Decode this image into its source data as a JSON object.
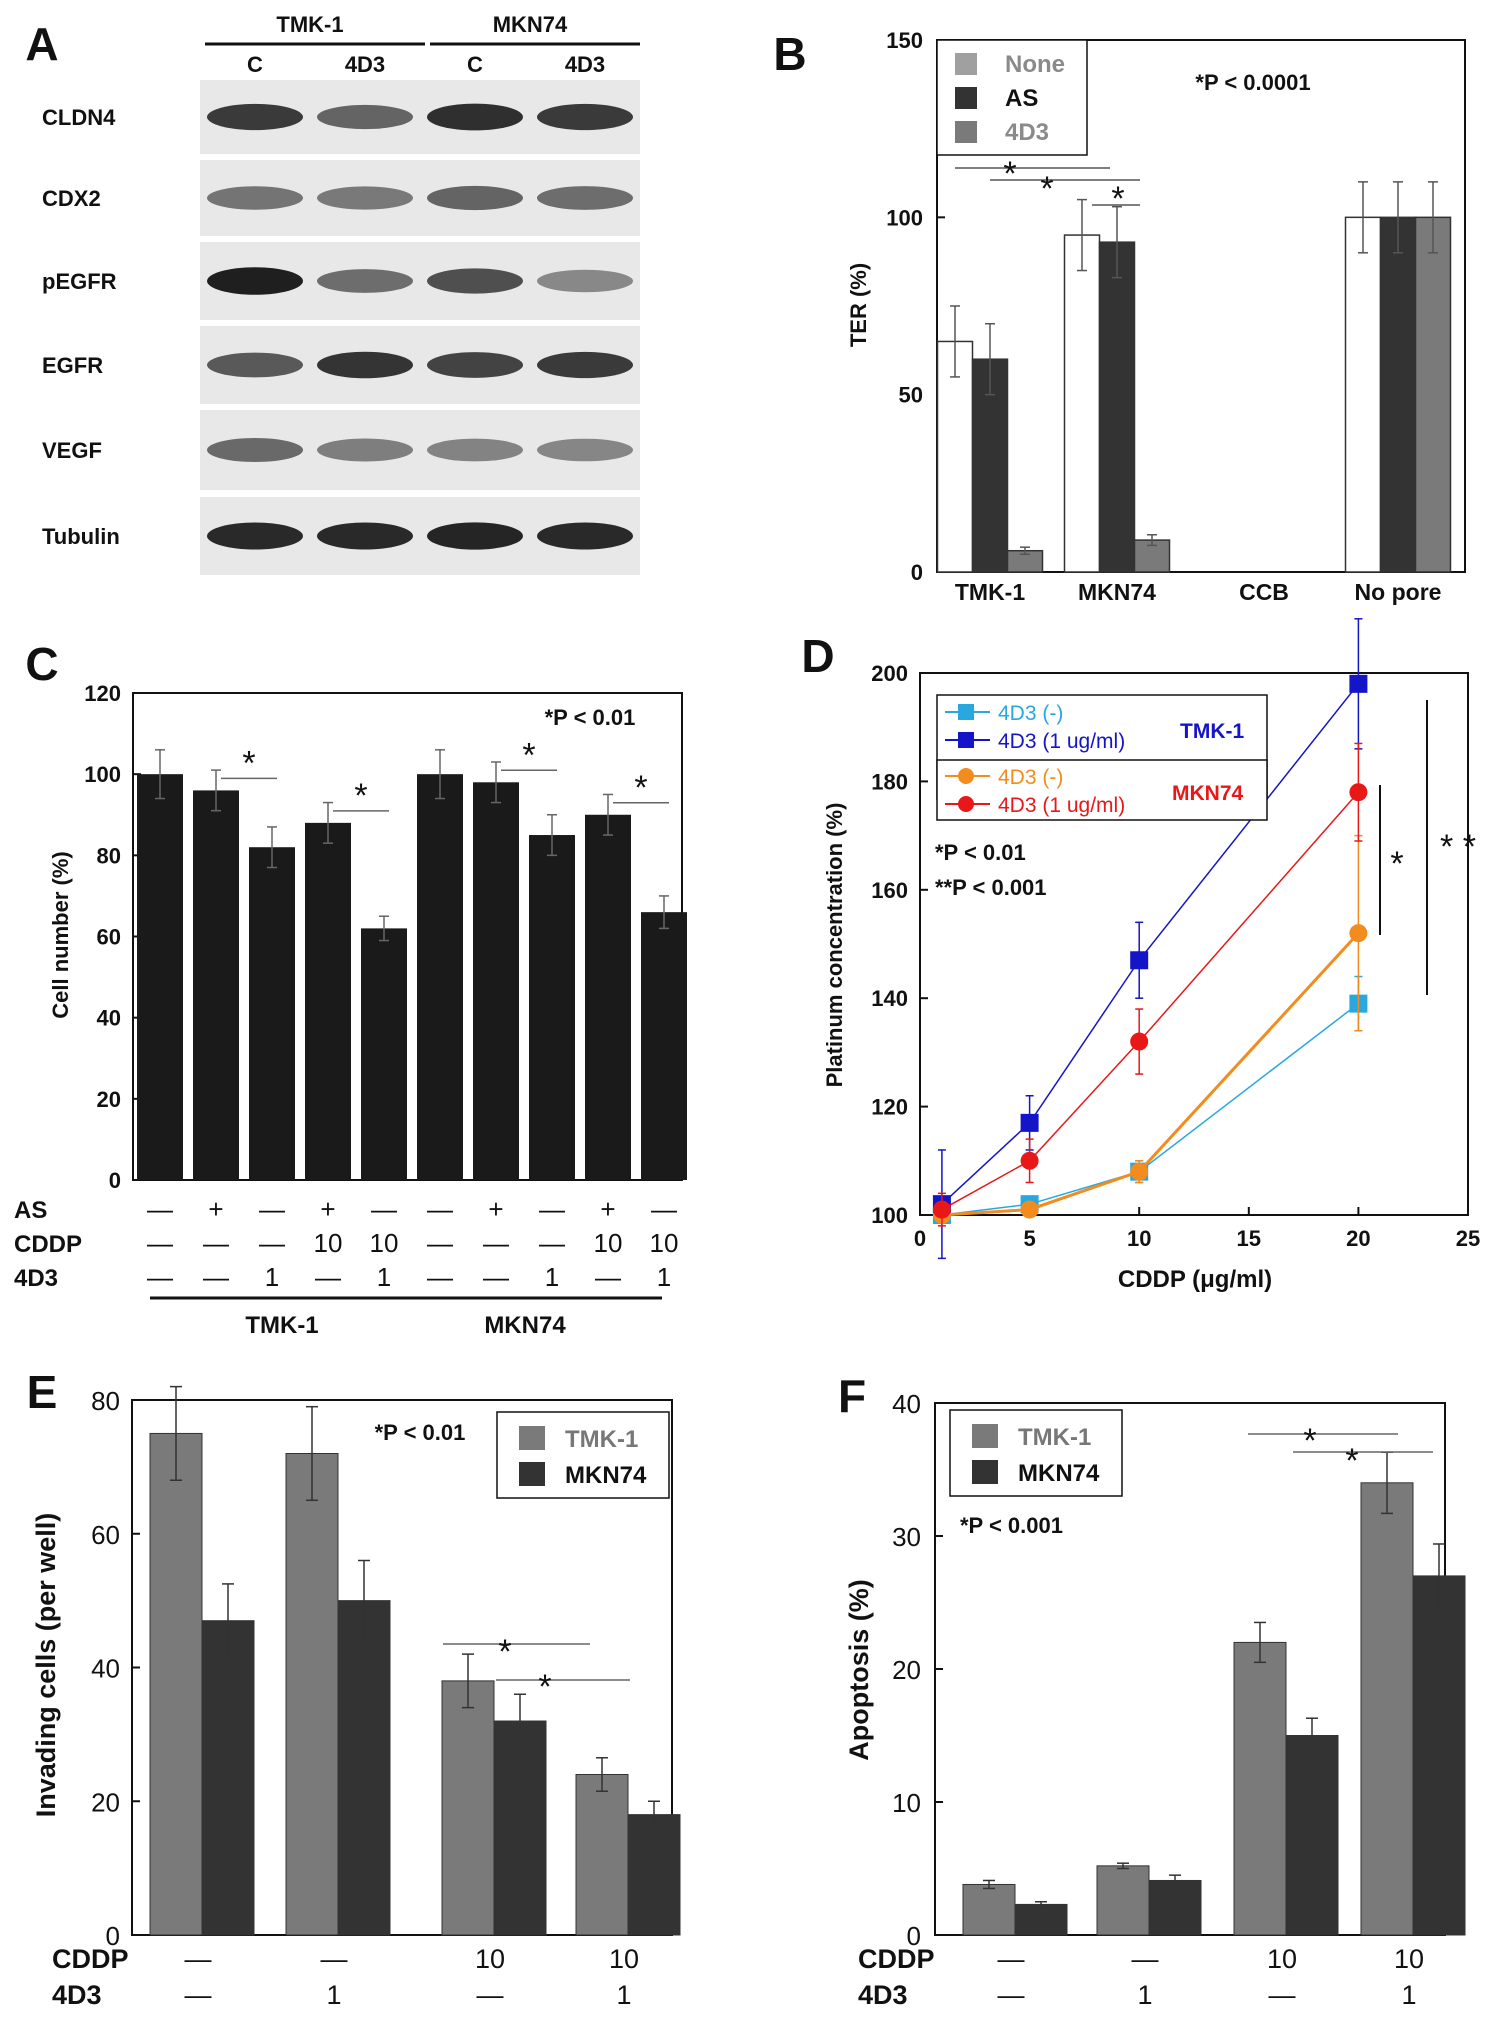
{
  "panels": {
    "A": {
      "letter": "A",
      "cell_lines": [
        "TMK-1",
        "MKN74"
      ],
      "lane_labels": [
        "C",
        "4D3",
        "C",
        "4D3"
      ],
      "rows": [
        "CLDN4",
        "CDX2",
        "pEGFR",
        "EGFR",
        "VEGF",
        "Tubulin"
      ],
      "band_intensity": [
        [
          0.82,
          0.62,
          0.88,
          0.82
        ],
        [
          0.55,
          0.52,
          0.62,
          0.58
        ],
        [
          0.95,
          0.58,
          0.72,
          0.45
        ],
        [
          0.68,
          0.85,
          0.78,
          0.82
        ],
        [
          0.6,
          0.5,
          0.48,
          0.46
        ],
        [
          0.9,
          0.9,
          0.92,
          0.9
        ]
      ]
    },
    "B": {
      "letter": "B",
      "p_note": "*P < 0.0001",
      "sig_marks": [
        "*",
        "*",
        "*"
      ]
    },
    "C": {
      "letter": "C",
      "p_note": "*P < 0.01",
      "row_labels": [
        "AS",
        "CDDP",
        "4D3"
      ],
      "conditions": [
        [
          "—",
          "—",
          "—"
        ],
        [
          "+",
          "—",
          "—"
        ],
        [
          "—",
          "—",
          "1"
        ],
        [
          "+",
          "10",
          "—"
        ],
        [
          "—",
          "10",
          "1"
        ],
        [
          "—",
          "—",
          "—"
        ],
        [
          "+",
          "—",
          "—"
        ],
        [
          "—",
          "—",
          "1"
        ],
        [
          "+",
          "10",
          "—"
        ],
        [
          "—",
          "10",
          "1"
        ]
      ],
      "group_labels": [
        "TMK-1",
        "MKN74"
      ],
      "sig_marks": [
        "*",
        "*",
        "*",
        "*"
      ]
    },
    "D": {
      "letter": "D",
      "p_notes": [
        "*P < 0.01",
        "**P <  0.001"
      ],
      "group_labels": [
        "TMK-1",
        "MKN74"
      ],
      "sig_marks": [
        "*",
        "* *"
      ]
    },
    "E": {
      "letter": "E",
      "p_note": "*P < 0.01",
      "row_labels": [
        "CDDP",
        "4D3"
      ],
      "conditions": [
        [
          "—",
          "—"
        ],
        [
          "—",
          "1"
        ],
        [
          "10",
          "—"
        ],
        [
          "10",
          "1"
        ]
      ],
      "sig_marks": [
        "*",
        "*"
      ]
    },
    "F": {
      "letter": "F",
      "p_note": "*P < 0.001",
      "row_labels": [
        "CDDP",
        "4D3"
      ],
      "conditions": [
        [
          "—",
          "—"
        ],
        [
          "—",
          "1"
        ],
        [
          "10",
          "—"
        ],
        [
          "10",
          "1"
        ]
      ],
      "sig_marks": [
        "*",
        "*"
      ]
    }
  },
  "colors": {
    "black_bar": "#1a1a1a",
    "dark_bar": "#333333",
    "mid_gray": "#7a7a7a",
    "light_gray": "#a0a0a0",
    "cyan": "#29a8e0",
    "blue": "#1414c8",
    "orange": "#f28c1e",
    "red": "#e81818",
    "blot_bg": "#e8e8e8"
  },
  "chart_data": [
    {
      "panel": "B",
      "type": "bar",
      "title": "",
      "xlabel": "",
      "ylabel": "TER (%)",
      "ylim": [
        0,
        150
      ],
      "yticks": [
        0,
        50,
        100,
        150
      ],
      "categories": [
        "TMK-1",
        "MKN74",
        "CCB",
        "No pore"
      ],
      "legend_placement": "top-left",
      "series": [
        {
          "name": "None",
          "values": [
            65,
            95,
            0,
            100
          ],
          "errors": [
            10,
            10,
            0,
            10
          ]
        },
        {
          "name": "AS",
          "values": [
            60,
            93,
            0,
            100
          ],
          "errors": [
            10,
            10,
            0,
            10
          ]
        },
        {
          "name": "4D3",
          "values": [
            6,
            9,
            0,
            100
          ],
          "errors": [
            1,
            1.5,
            0,
            10
          ]
        }
      ]
    },
    {
      "panel": "C",
      "type": "bar",
      "title": "",
      "xlabel": "",
      "ylabel": "Cell number (%)",
      "ylim": [
        0,
        120
      ],
      "yticks": [
        0,
        20,
        40,
        60,
        80,
        100,
        120
      ],
      "categories": [
        "1",
        "2",
        "3",
        "4",
        "5",
        "6",
        "7",
        "8",
        "9",
        "10"
      ],
      "values": [
        100,
        96,
        82,
        88,
        62,
        100,
        98,
        85,
        90,
        66
      ],
      "errors": [
        6,
        5,
        5,
        5,
        3,
        6,
        5,
        5,
        5,
        4
      ]
    },
    {
      "panel": "D",
      "type": "line",
      "title": "",
      "xlabel": "CDDP (μg/ml)",
      "ylabel": "Platinum concentration (%)",
      "xlim": [
        0,
        25
      ],
      "ylim": [
        100,
        200
      ],
      "xticks": [
        0,
        5,
        10,
        15,
        20,
        25
      ],
      "yticks": [
        100,
        120,
        140,
        160,
        180,
        200
      ],
      "legend_placement": "top-left",
      "series": [
        {
          "name": "4D3 (-)",
          "marker": "square",
          "group": "TMK-1",
          "x": [
            1,
            5,
            10,
            20
          ],
          "y": [
            100,
            102,
            108,
            139
          ],
          "errors": [
            0,
            1,
            2,
            5
          ]
        },
        {
          "name": "4D3 (1 ug/ml)",
          "marker": "square",
          "group": "TMK-1",
          "x": [
            1,
            5,
            10,
            20
          ],
          "y": [
            102,
            117,
            147,
            198
          ],
          "errors": [
            10,
            5,
            7,
            12
          ]
        },
        {
          "name": "4D3 (-)",
          "marker": "circle",
          "group": "MKN74",
          "x": [
            1,
            5,
            10,
            20
          ],
          "y": [
            100,
            101,
            108,
            152
          ],
          "errors": [
            0,
            1,
            2,
            18
          ]
        },
        {
          "name": "4D3 (1 ug/ml)",
          "marker": "circle",
          "group": "MKN74",
          "x": [
            1,
            5,
            10,
            20
          ],
          "y": [
            101,
            110,
            132,
            178
          ],
          "errors": [
            3,
            4,
            6,
            9
          ]
        }
      ]
    },
    {
      "panel": "E",
      "type": "bar",
      "title": "",
      "xlabel": "",
      "ylabel": "Invading cells (per well)",
      "ylim": [
        0,
        80
      ],
      "yticks": [
        0,
        20,
        40,
        60,
        80
      ],
      "categories": [
        "1",
        "2",
        "3",
        "4"
      ],
      "legend_placement": "top-right",
      "series": [
        {
          "name": "TMK-1",
          "values": [
            75,
            72,
            38,
            24
          ],
          "errors": [
            7,
            7,
            4,
            2.5
          ]
        },
        {
          "name": "MKN74",
          "values": [
            47,
            50,
            32,
            18
          ],
          "errors": [
            5.5,
            6,
            4,
            2
          ]
        }
      ]
    },
    {
      "panel": "F",
      "type": "bar",
      "title": "",
      "xlabel": "",
      "ylabel": "Apoptosis (%)",
      "ylim": [
        0,
        40
      ],
      "yticks": [
        0,
        10,
        20,
        30,
        40
      ],
      "categories": [
        "1",
        "2",
        "3",
        "4"
      ],
      "legend_placement": "top-left",
      "series": [
        {
          "name": "TMK-1",
          "values": [
            3.8,
            5.2,
            22,
            34
          ],
          "errors": [
            0.3,
            0.2,
            1.5,
            2.3
          ]
        },
        {
          "name": "MKN74",
          "values": [
            2.3,
            4.1,
            15,
            27
          ],
          "errors": [
            0.2,
            0.4,
            1.3,
            2.4
          ]
        }
      ]
    }
  ]
}
